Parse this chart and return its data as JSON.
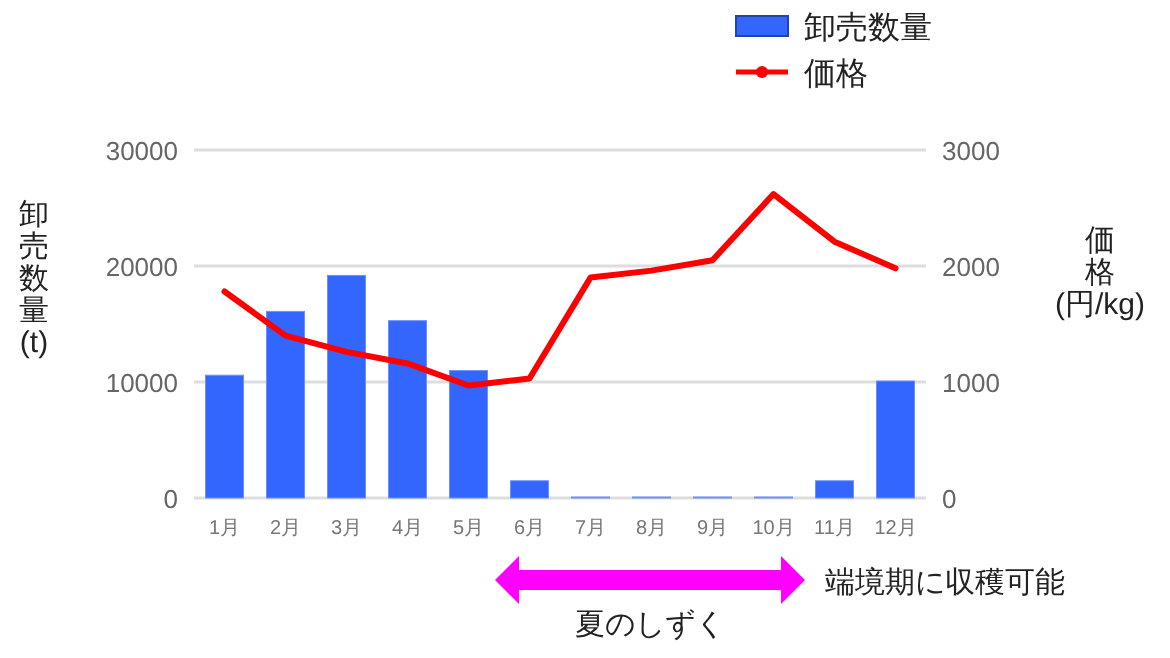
{
  "chart_data": {
    "type": "bar",
    "categories": [
      "1月",
      "2月",
      "3月",
      "4月",
      "5月",
      "6月",
      "7月",
      "8月",
      "9月",
      "10月",
      "11月",
      "12月"
    ],
    "series": [
      {
        "name": "卸売数量",
        "color": "#3366ff",
        "values": [
          10500,
          16000,
          19100,
          15200,
          10900,
          1400,
          0,
          0,
          0,
          0,
          1400,
          10000
        ]
      },
      {
        "name": "価格",
        "type": "line",
        "axis": "y2",
        "color": "#ff0000",
        "values": [
          1780,
          1400,
          1260,
          1160,
          970,
          1030,
          1900,
          1960,
          2050,
          2620,
          2210,
          1980
        ]
      }
    ],
    "ylabel": "卸売数量(t)",
    "y2label": "価格(円/kg)",
    "ylim": [
      0,
      30000
    ],
    "yticks": [
      0,
      10000,
      20000,
      30000
    ],
    "y2lim": [
      0,
      3000
    ],
    "y2ticks": [
      0,
      1000,
      2000,
      3000
    ],
    "grid": "y",
    "legend": "top right",
    "marker": "none",
    "line_style": "solid",
    "annotations": [
      "夏のしずく",
      "端境期に収穫可能"
    ]
  }
}
